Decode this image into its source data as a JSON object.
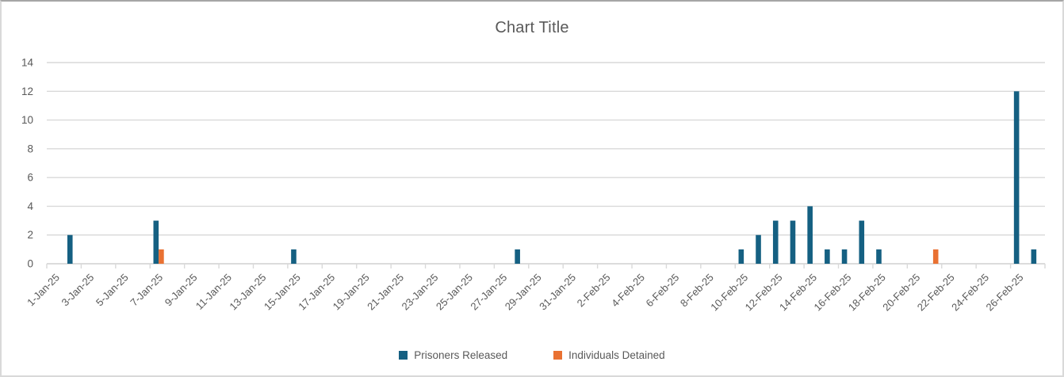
{
  "title": "Chart Title",
  "colors": {
    "released": "#156082",
    "detained": "#E97132",
    "gridline": "#D9D9D9",
    "axis_line": "#D0D0D0",
    "text": "#595959"
  },
  "legend": {
    "items": [
      {
        "label": "Prisoners Released",
        "color": "#156082"
      },
      {
        "label": "Individuals Detained",
        "color": "#E97132"
      }
    ]
  },
  "chart_data": {
    "type": "bar",
    "title": "Chart Title",
    "categories": [
      "1-Jan-25",
      "2-Jan-25",
      "3-Jan-25",
      "4-Jan-25",
      "5-Jan-25",
      "6-Jan-25",
      "7-Jan-25",
      "8-Jan-25",
      "9-Jan-25",
      "10-Jan-25",
      "11-Jan-25",
      "12-Jan-25",
      "13-Jan-25",
      "14-Jan-25",
      "15-Jan-25",
      "16-Jan-25",
      "17-Jan-25",
      "18-Jan-25",
      "19-Jan-25",
      "20-Jan-25",
      "21-Jan-25",
      "22-Jan-25",
      "23-Jan-25",
      "24-Jan-25",
      "25-Jan-25",
      "26-Jan-25",
      "27-Jan-25",
      "28-Jan-25",
      "29-Jan-25",
      "30-Jan-25",
      "31-Jan-25",
      "1-Feb-25",
      "2-Feb-25",
      "3-Feb-25",
      "4-Feb-25",
      "5-Feb-25",
      "6-Feb-25",
      "7-Feb-25",
      "8-Feb-25",
      "9-Feb-25",
      "10-Feb-25",
      "11-Feb-25",
      "12-Feb-25",
      "13-Feb-25",
      "14-Feb-25",
      "15-Feb-25",
      "16-Feb-25",
      "17-Feb-25",
      "18-Feb-25",
      "19-Feb-25",
      "20-Feb-25",
      "21-Feb-25",
      "22-Feb-25",
      "23-Feb-25",
      "24-Feb-25",
      "25-Feb-25",
      "26-Feb-25",
      "27-Feb-25"
    ],
    "series": [
      {
        "name": "Prisoners Released",
        "color": "#156082",
        "values": [
          0,
          2,
          0,
          0,
          0,
          0,
          3,
          0,
          0,
          0,
          0,
          0,
          0,
          0,
          1,
          0,
          0,
          0,
          0,
          0,
          0,
          0,
          0,
          0,
          0,
          0,
          0,
          1,
          0,
          0,
          0,
          0,
          0,
          0,
          0,
          0,
          0,
          0,
          0,
          0,
          1,
          2,
          3,
          3,
          4,
          1,
          1,
          3,
          1,
          0,
          0,
          0,
          0,
          0,
          0,
          0,
          12,
          1
        ]
      },
      {
        "name": "Individuals Detained",
        "color": "#E97132",
        "values": [
          0,
          0,
          0,
          0,
          0,
          0,
          1,
          0,
          0,
          0,
          0,
          0,
          0,
          0,
          0,
          0,
          0,
          0,
          0,
          0,
          0,
          0,
          0,
          0,
          0,
          0,
          0,
          0,
          0,
          0,
          0,
          0,
          0,
          0,
          0,
          0,
          0,
          0,
          0,
          0,
          0,
          0,
          0,
          0,
          0,
          0,
          0,
          0,
          0,
          0,
          0,
          1,
          0,
          0,
          0,
          0,
          0,
          0
        ]
      }
    ],
    "x_tick_labels": [
      "1-Jan-25",
      "3-Jan-25",
      "5-Jan-25",
      "7-Jan-25",
      "9-Jan-25",
      "11-Jan-25",
      "13-Jan-25",
      "15-Jan-25",
      "17-Jan-25",
      "19-Jan-25",
      "21-Jan-25",
      "23-Jan-25",
      "25-Jan-25",
      "27-Jan-25",
      "29-Jan-25",
      "31-Jan-25",
      "2-Feb-25",
      "4-Feb-25",
      "6-Feb-25",
      "8-Feb-25",
      "10-Feb-25",
      "12-Feb-25",
      "14-Feb-25",
      "16-Feb-25",
      "18-Feb-25",
      "20-Feb-25",
      "22-Feb-25",
      "24-Feb-25",
      "26-Feb-25"
    ],
    "y_ticks": [
      0,
      2,
      4,
      6,
      8,
      10,
      12,
      14
    ],
    "ylim": [
      0,
      14
    ],
    "grid": true,
    "legend_position": "bottom"
  }
}
